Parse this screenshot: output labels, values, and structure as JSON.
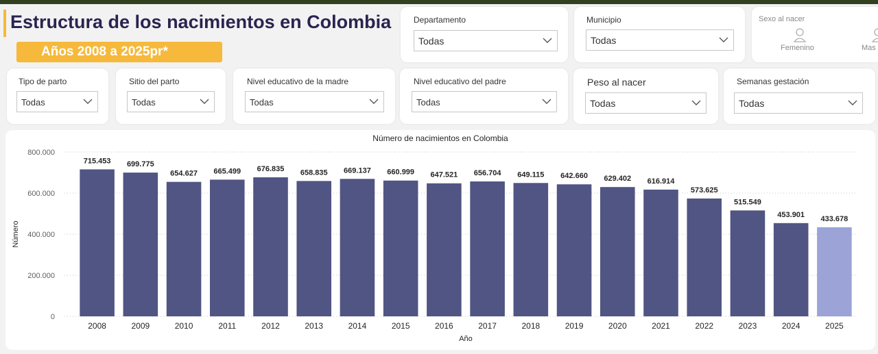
{
  "header": {
    "title": "Estructura de los nacimientos en Colombia",
    "subtitle": "Años 2008 a 2025pr*"
  },
  "filters": {
    "departamento": {
      "label": "Departamento",
      "value": "Todas"
    },
    "municipio": {
      "label": "Municipio",
      "value": "Todas"
    },
    "sexo": {
      "label": "Sexo al nacer",
      "options": [
        "Femenino",
        "Mas"
      ]
    },
    "tipo_parto": {
      "label": "Tipo de parto",
      "value": "Todas"
    },
    "sitio_parto": {
      "label": "Sitio del parto",
      "value": "Todas"
    },
    "nivel_madre": {
      "label": "Nivel educativo de la madre",
      "value": "Todas"
    },
    "nivel_padre": {
      "label": "Nivel educativo del padre",
      "value": "Todas"
    },
    "peso": {
      "label": "Peso al nacer",
      "value": "Todas"
    },
    "semanas": {
      "label": "Semanas gestación",
      "value": "Todas"
    }
  },
  "colors": {
    "bar": "#505583",
    "bar_highlight": "#9ba3d7",
    "accent": "#f6b93b",
    "title": "#2a2450"
  },
  "chart_data": {
    "type": "bar",
    "title": "Número de nacimientos en Colombia",
    "xlabel": "Año",
    "ylabel": "Número",
    "ylim": [
      0,
      800000
    ],
    "yticks": [
      "0",
      "200.000",
      "400.000",
      "600.000",
      "800.000"
    ],
    "ytick_values": [
      0,
      200000,
      400000,
      600000,
      800000
    ],
    "categories": [
      "2008",
      "2009",
      "2010",
      "2011",
      "2012",
      "2013",
      "2014",
      "2015",
      "2016",
      "2017",
      "2018",
      "2019",
      "2020",
      "2021",
      "2022",
      "2023",
      "2024",
      "2025"
    ],
    "values": [
      715453,
      699775,
      654627,
      665499,
      676835,
      658835,
      669137,
      660999,
      647521,
      656704,
      649115,
      642660,
      629402,
      616914,
      573625,
      515549,
      453901,
      433678
    ],
    "labels": [
      "715.453",
      "699.775",
      "654.627",
      "665.499",
      "676.835",
      "658.835",
      "669.137",
      "660.999",
      "647.521",
      "656.704",
      "649.115",
      "642.660",
      "629.402",
      "616.914",
      "573.625",
      "515.549",
      "453.901",
      "433.678"
    ],
    "highlight_index": 17,
    "grid": true
  }
}
